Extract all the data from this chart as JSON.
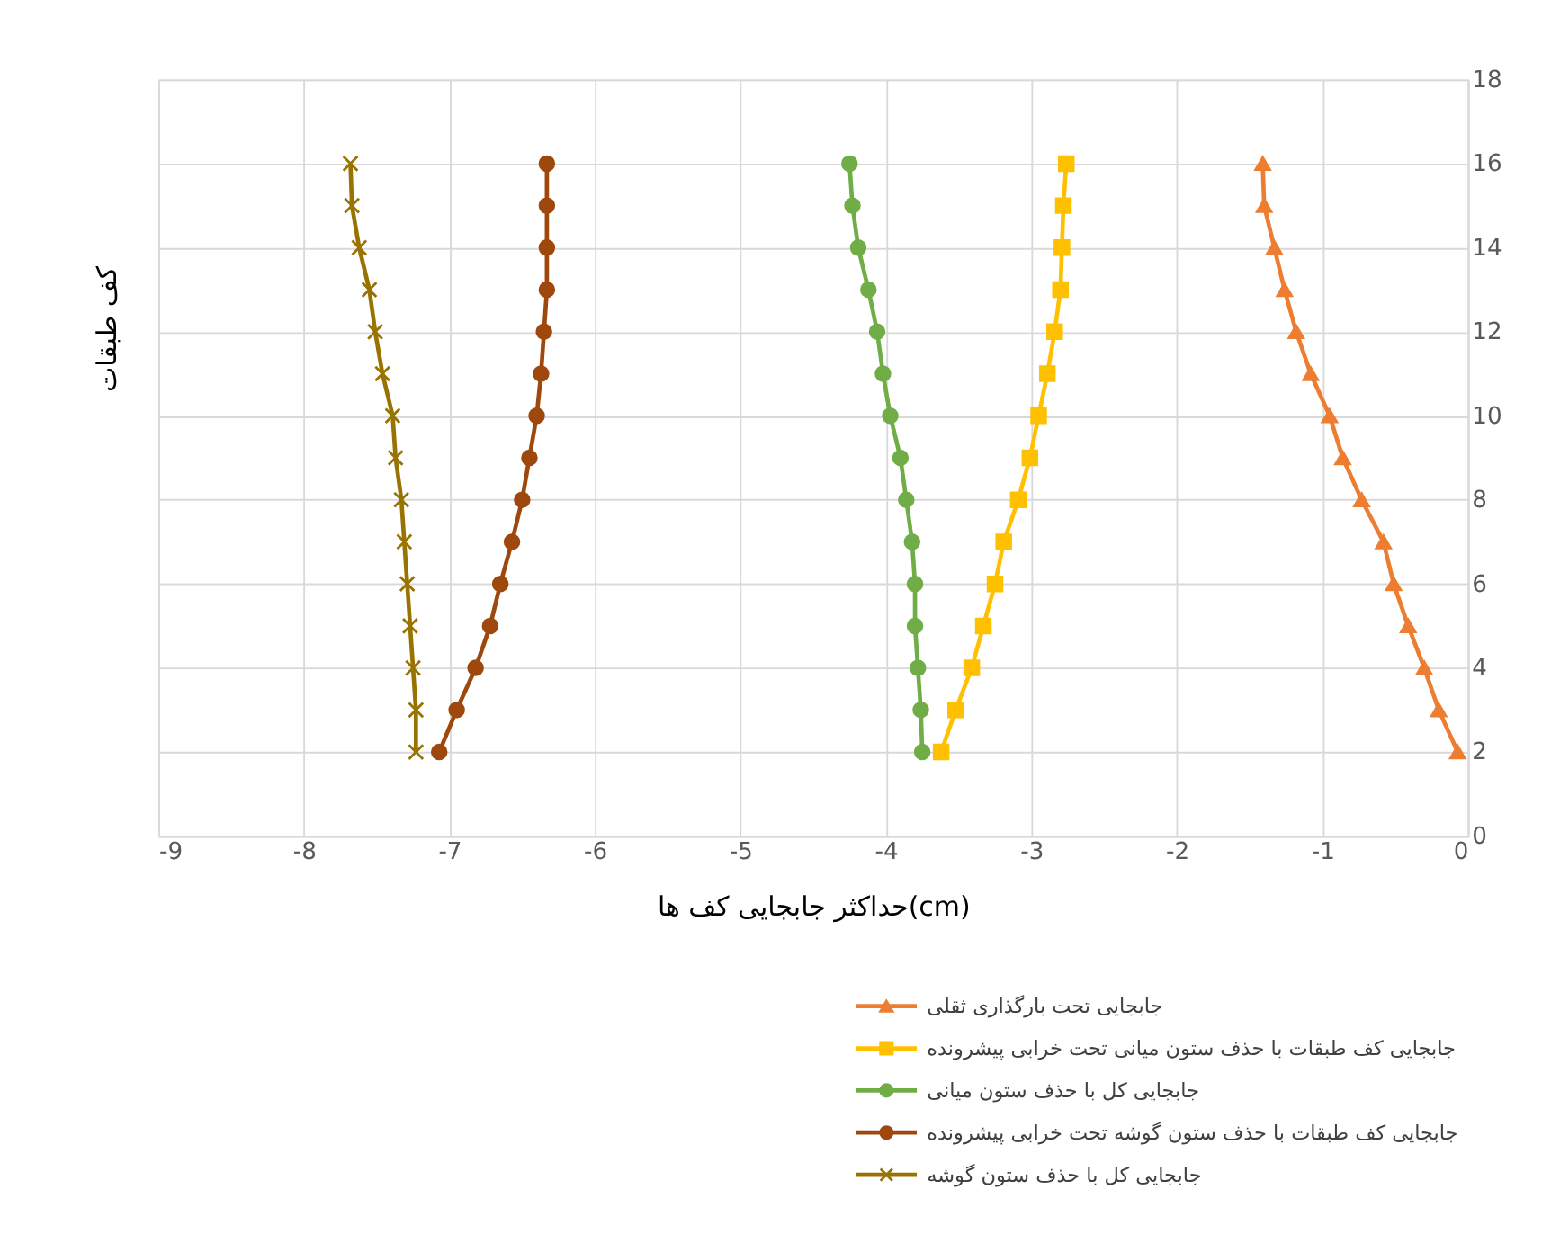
{
  "chart_data": {
    "type": "line",
    "xlabel": "حداکثر جابجایی کف ها(cm)",
    "ylabel": "کف طبقات",
    "xlim": [
      -9,
      0
    ],
    "xticks": [
      -9,
      -8,
      -7,
      -6,
      -5,
      -4,
      -3,
      -2,
      -1,
      0
    ],
    "ylim": [
      0,
      18
    ],
    "yticks": [
      0,
      2,
      4,
      6,
      8,
      10,
      12,
      14,
      16,
      18
    ],
    "grid": true,
    "legend": "bottom",
    "line_style": "solid",
    "series": [
      {
        "name": "جابجایی تحت بارگذاری ثقلی",
        "color": "#ed7d31",
        "marker": "triangle",
        "x": [
          -0.07,
          -0.2,
          -0.3,
          -0.41,
          -0.51,
          -0.58,
          -0.73,
          -0.86,
          -0.95,
          -1.08,
          -1.18,
          -1.26,
          -1.33,
          -1.4,
          -1.41
        ],
        "values": [
          2,
          3,
          4,
          5,
          6,
          7,
          8,
          9,
          10,
          11,
          12,
          13,
          14,
          15,
          16
        ]
      },
      {
        "name": "جابجایی کف طبقات با حذف ستون میانی تحت خرابی پیشرونده",
        "color": "#ffc000",
        "marker": "square",
        "x": [
          -3.62,
          -3.52,
          -3.41,
          -3.33,
          -3.25,
          -3.19,
          -3.09,
          -3.01,
          -2.95,
          -2.89,
          -2.84,
          -2.8,
          -2.79,
          -2.78,
          -2.76
        ],
        "values": [
          2,
          3,
          4,
          5,
          6,
          7,
          8,
          9,
          10,
          11,
          12,
          13,
          14,
          15,
          16
        ]
      },
      {
        "name": "جابجایی کل با حذف ستون میانی",
        "color": "#70ad47",
        "marker": "circle",
        "x": [
          -3.75,
          -3.76,
          -3.78,
          -3.8,
          -3.8,
          -3.82,
          -3.86,
          -3.9,
          -3.97,
          -4.02,
          -4.06,
          -4.12,
          -4.19,
          -4.23,
          -4.25
        ],
        "values": [
          2,
          3,
          4,
          5,
          6,
          7,
          8,
          9,
          10,
          11,
          12,
          13,
          14,
          15,
          16
        ]
      },
      {
        "name": "جابجایی کف طبقات با حذف ستون گوشه تحت خرابی پیشرونده",
        "color": "#9e480e",
        "marker": "circle",
        "x": [
          -7.07,
          -6.95,
          -6.82,
          -6.72,
          -6.65,
          -6.57,
          -6.5,
          -6.45,
          -6.4,
          -6.37,
          -6.35,
          -6.33,
          -6.33,
          -6.33,
          -6.33
        ],
        "values": [
          2,
          3,
          4,
          5,
          6,
          7,
          8,
          9,
          10,
          11,
          12,
          13,
          14,
          15,
          16
        ]
      },
      {
        "name": "جابجایی کل با حذف ستون گوشه",
        "color": "#997300",
        "marker": "cross",
        "x": [
          -7.23,
          -7.23,
          -7.25,
          -7.27,
          -7.29,
          -7.31,
          -7.33,
          -7.37,
          -7.39,
          -7.46,
          -7.51,
          -7.55,
          -7.62,
          -7.67,
          -7.68
        ],
        "values": [
          2,
          3,
          4,
          5,
          6,
          7,
          8,
          9,
          10,
          11,
          12,
          13,
          14,
          15,
          16
        ]
      }
    ]
  }
}
